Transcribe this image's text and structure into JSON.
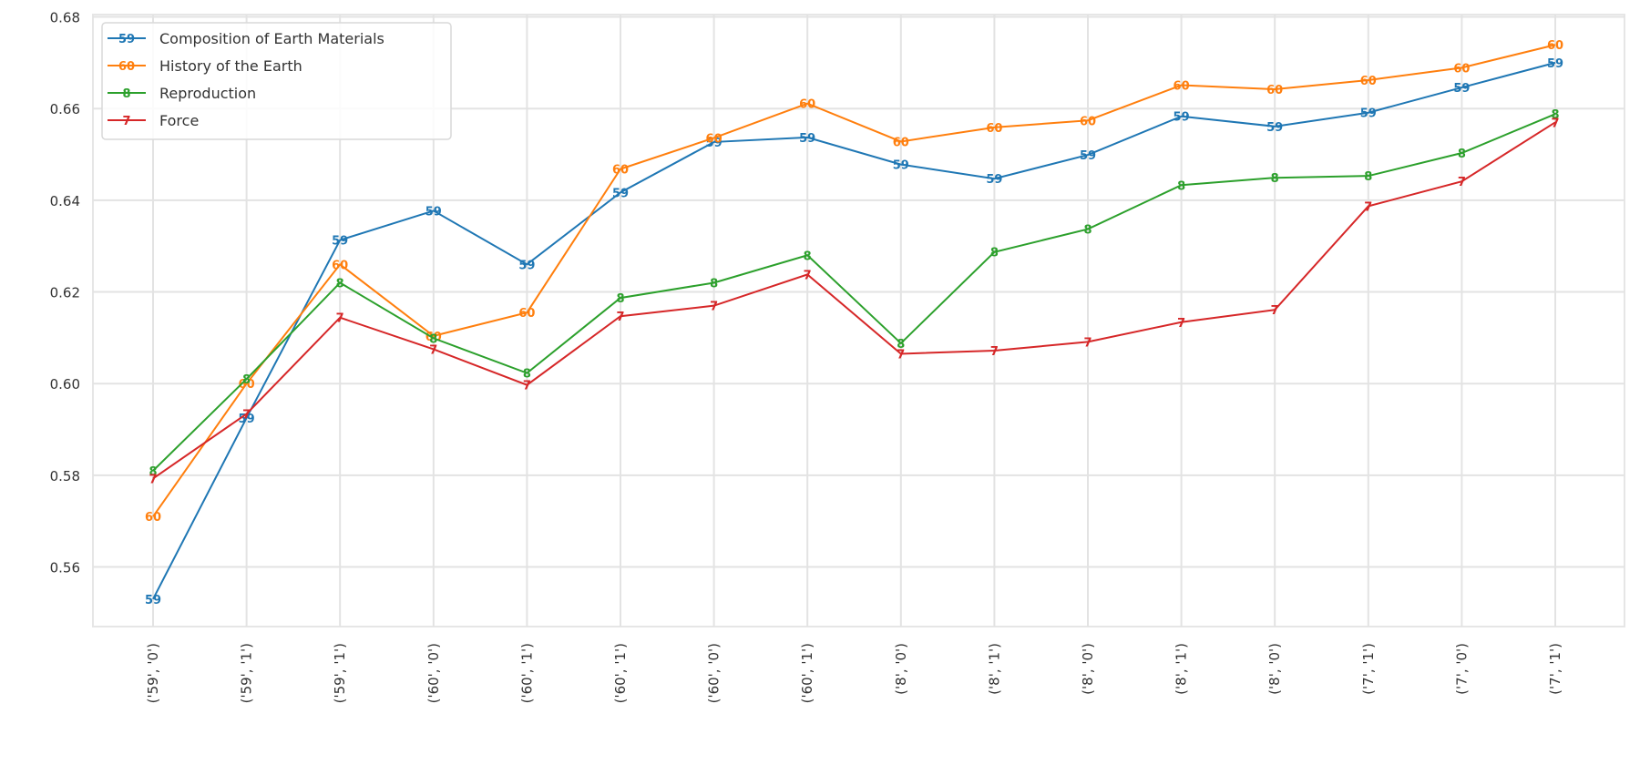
{
  "chart_data": {
    "type": "line",
    "title": "",
    "xlabel": "",
    "ylabel": "",
    "ylim": [
      0.547,
      0.6805
    ],
    "grid": true,
    "legend_position": "upper left",
    "yticks": [
      "0.56",
      "0.58",
      "0.60",
      "0.62",
      "0.64",
      "0.66",
      "0.68"
    ],
    "categories": [
      "('59', '0')",
      "('59', '1')",
      "('59', '1')",
      "('60', '0')",
      "('60', '1')",
      "('60', '1')",
      "('60', '0')",
      "('60', '1')",
      "('8', '0')",
      "('8', '1')",
      "('8', '0')",
      "('8', '1')",
      "('8', '0')",
      "('7', '1')",
      "('7', '0')",
      "('7', '1')"
    ],
    "series": [
      {
        "name": "Composition of Earth Materials",
        "marker": "59",
        "color": "#1f77b4",
        "values": [
          0.553,
          0.5925,
          0.6313,
          0.6377,
          0.626,
          0.6417,
          0.6527,
          0.6537,
          0.6478,
          0.6447,
          0.6499,
          0.6583,
          0.6561,
          0.6591,
          0.6646,
          0.67
        ]
      },
      {
        "name": "History of the Earth",
        "marker": "60",
        "color": "#ff7f0e",
        "values": [
          0.571,
          0.6,
          0.626,
          0.6104,
          0.6155,
          0.6468,
          0.6536,
          0.6611,
          0.6528,
          0.6559,
          0.6574,
          0.6651,
          0.6642,
          0.6662,
          0.6689,
          0.6739
        ]
      },
      {
        "name": "Reproduction",
        "marker": "8",
        "color": "#2ca02c",
        "values": [
          0.581,
          0.601,
          0.622,
          0.6099,
          0.6023,
          0.6187,
          0.622,
          0.628,
          0.6088,
          0.6287,
          0.6337,
          0.6433,
          0.6449,
          0.6453,
          0.6503,
          0.6588
        ]
      },
      {
        "name": "Force",
        "marker": "7",
        "color": "#d62728",
        "values": [
          0.5793,
          0.5934,
          0.6144,
          0.6075,
          0.5997,
          0.6147,
          0.617,
          0.6238,
          0.6065,
          0.6072,
          0.6091,
          0.6134,
          0.6161,
          0.6387,
          0.6441,
          0.657
        ]
      }
    ]
  }
}
